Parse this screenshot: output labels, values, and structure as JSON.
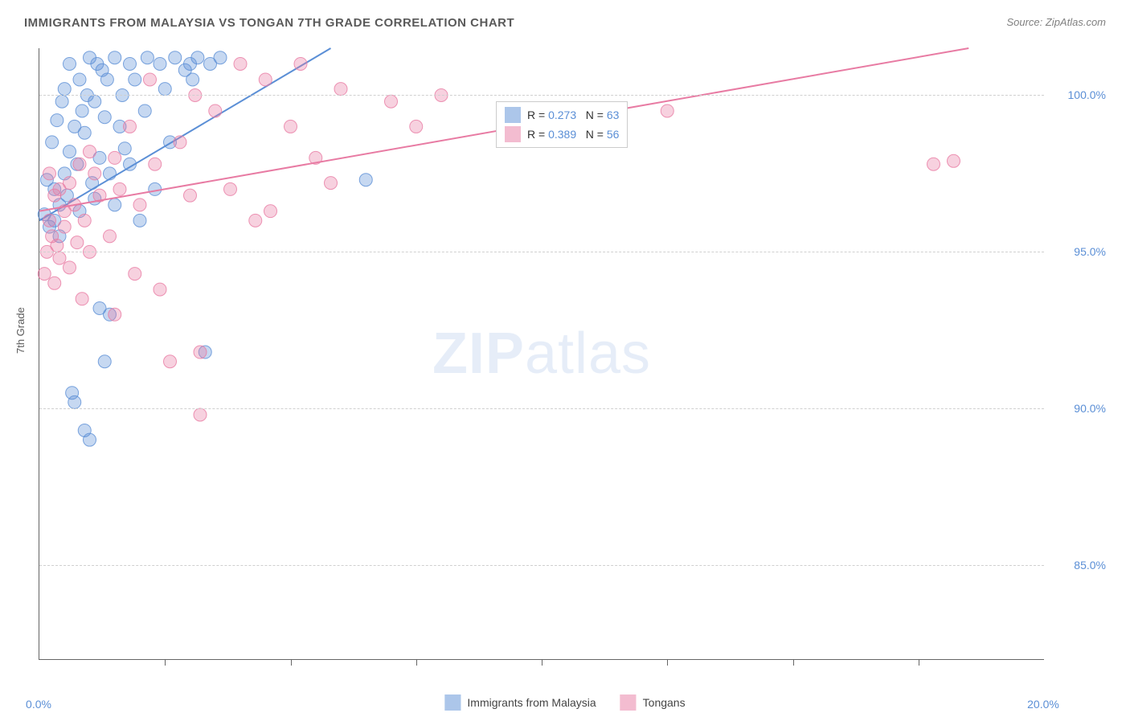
{
  "title": "IMMIGRANTS FROM MALAYSIA VS TONGAN 7TH GRADE CORRELATION CHART",
  "source": "Source: ZipAtlas.com",
  "watermark_zip": "ZIP",
  "watermark_atlas": "atlas",
  "chart": {
    "type": "scatter",
    "ylabel": "7th Grade",
    "xlim": [
      0,
      20
    ],
    "ylim": [
      82,
      101.5
    ],
    "ytick_values": [
      85,
      90,
      95,
      100
    ],
    "ytick_labels": [
      "85.0%",
      "90.0%",
      "95.0%",
      "100.0%"
    ],
    "xtick_left_value": 0,
    "xtick_left_label": "0.0%",
    "xtick_right_value": 20,
    "xtick_right_label": "20.0%",
    "xtick_minor": [
      2.5,
      5,
      7.5,
      10,
      12.5,
      15,
      17.5
    ],
    "background_color": "#ffffff",
    "grid_color": "#d0d0d0",
    "marker_radius": 8,
    "marker_fill_opacity": 0.35,
    "marker_stroke_opacity": 0.8,
    "marker_stroke_width": 1,
    "line_width": 2,
    "series": [
      {
        "name": "Immigrants from Malaysia",
        "color": "#5b8fd6",
        "r_value": "0.273",
        "n_value": "63",
        "regression": {
          "x1": 0,
          "y1": 96.0,
          "x2": 5.8,
          "y2": 101.5
        },
        "points": [
          [
            0.1,
            96.2
          ],
          [
            0.15,
            97.3
          ],
          [
            0.2,
            95.8
          ],
          [
            0.25,
            98.5
          ],
          [
            0.3,
            96.0
          ],
          [
            0.3,
            97.0
          ],
          [
            0.35,
            99.2
          ],
          [
            0.4,
            95.5
          ],
          [
            0.4,
            96.5
          ],
          [
            0.45,
            99.8
          ],
          [
            0.5,
            97.5
          ],
          [
            0.5,
            100.2
          ],
          [
            0.55,
            96.8
          ],
          [
            0.6,
            98.2
          ],
          [
            0.6,
            101.0
          ],
          [
            0.65,
            90.5
          ],
          [
            0.7,
            99.0
          ],
          [
            0.7,
            90.2
          ],
          [
            0.75,
            97.8
          ],
          [
            0.8,
            100.5
          ],
          [
            0.8,
            96.3
          ],
          [
            0.85,
            99.5
          ],
          [
            0.9,
            89.3
          ],
          [
            0.9,
            98.8
          ],
          [
            0.95,
            100.0
          ],
          [
            1.0,
            89.0
          ],
          [
            1.0,
            101.2
          ],
          [
            1.05,
            97.2
          ],
          [
            1.1,
            99.8
          ],
          [
            1.1,
            96.7
          ],
          [
            1.15,
            101.0
          ],
          [
            1.2,
            98.0
          ],
          [
            1.2,
            93.2
          ],
          [
            1.25,
            100.8
          ],
          [
            1.3,
            91.5
          ],
          [
            1.3,
            99.3
          ],
          [
            1.35,
            100.5
          ],
          [
            1.4,
            97.5
          ],
          [
            1.4,
            93.0
          ],
          [
            1.5,
            101.2
          ],
          [
            1.5,
            96.5
          ],
          [
            1.6,
            99.0
          ],
          [
            1.65,
            100.0
          ],
          [
            1.7,
            98.3
          ],
          [
            1.8,
            101.0
          ],
          [
            1.8,
            97.8
          ],
          [
            1.9,
            100.5
          ],
          [
            2.0,
            96.0
          ],
          [
            2.1,
            99.5
          ],
          [
            2.15,
            101.2
          ],
          [
            2.3,
            97.0
          ],
          [
            2.4,
            101.0
          ],
          [
            2.5,
            100.2
          ],
          [
            2.6,
            98.5
          ],
          [
            2.7,
            101.2
          ],
          [
            2.9,
            100.8
          ],
          [
            3.0,
            101.0
          ],
          [
            3.05,
            100.5
          ],
          [
            3.15,
            101.2
          ],
          [
            3.3,
            91.8
          ],
          [
            3.4,
            101.0
          ],
          [
            3.6,
            101.2
          ],
          [
            6.5,
            97.3
          ]
        ]
      },
      {
        "name": "Tongans",
        "color": "#e87ba3",
        "r_value": "0.389",
        "n_value": "56",
        "regression": {
          "x1": 0,
          "y1": 96.3,
          "x2": 18.5,
          "y2": 101.5
        },
        "points": [
          [
            0.1,
            94.3
          ],
          [
            0.15,
            95.0
          ],
          [
            0.2,
            96.0
          ],
          [
            0.2,
            97.5
          ],
          [
            0.25,
            95.5
          ],
          [
            0.3,
            94.0
          ],
          [
            0.3,
            96.8
          ],
          [
            0.35,
            95.2
          ],
          [
            0.4,
            97.0
          ],
          [
            0.4,
            94.8
          ],
          [
            0.5,
            96.3
          ],
          [
            0.5,
            95.8
          ],
          [
            0.6,
            97.2
          ],
          [
            0.6,
            94.5
          ],
          [
            0.7,
            96.5
          ],
          [
            0.75,
            95.3
          ],
          [
            0.8,
            97.8
          ],
          [
            0.85,
            93.5
          ],
          [
            0.9,
            96.0
          ],
          [
            1.0,
            98.2
          ],
          [
            1.0,
            95.0
          ],
          [
            1.1,
            97.5
          ],
          [
            1.2,
            96.8
          ],
          [
            1.4,
            95.5
          ],
          [
            1.5,
            98.0
          ],
          [
            1.5,
            93.0
          ],
          [
            1.6,
            97.0
          ],
          [
            1.8,
            99.0
          ],
          [
            1.9,
            94.3
          ],
          [
            2.0,
            96.5
          ],
          [
            2.2,
            100.5
          ],
          [
            2.3,
            97.8
          ],
          [
            2.4,
            93.8
          ],
          [
            2.6,
            91.5
          ],
          [
            2.8,
            98.5
          ],
          [
            3.0,
            96.8
          ],
          [
            3.1,
            100.0
          ],
          [
            3.2,
            89.8
          ],
          [
            3.2,
            91.8
          ],
          [
            3.5,
            99.5
          ],
          [
            3.8,
            97.0
          ],
          [
            4.0,
            101.0
          ],
          [
            4.3,
            96.0
          ],
          [
            4.5,
            100.5
          ],
          [
            5.0,
            99.0
          ],
          [
            5.2,
            101.0
          ],
          [
            5.5,
            98.0
          ],
          [
            5.8,
            97.2
          ],
          [
            6.0,
            100.2
          ],
          [
            7.0,
            99.8
          ],
          [
            7.5,
            99.0
          ],
          [
            8.0,
            100.0
          ],
          [
            12.5,
            99.5
          ],
          [
            17.8,
            97.8
          ],
          [
            18.2,
            97.9
          ],
          [
            4.6,
            96.3
          ]
        ]
      }
    ]
  },
  "legend_top": {
    "r_label": "R =",
    "n_label": "N ="
  },
  "colors": {
    "title": "#5a5a5a",
    "axis_text": "#5b8fd6",
    "source": "#808080"
  }
}
